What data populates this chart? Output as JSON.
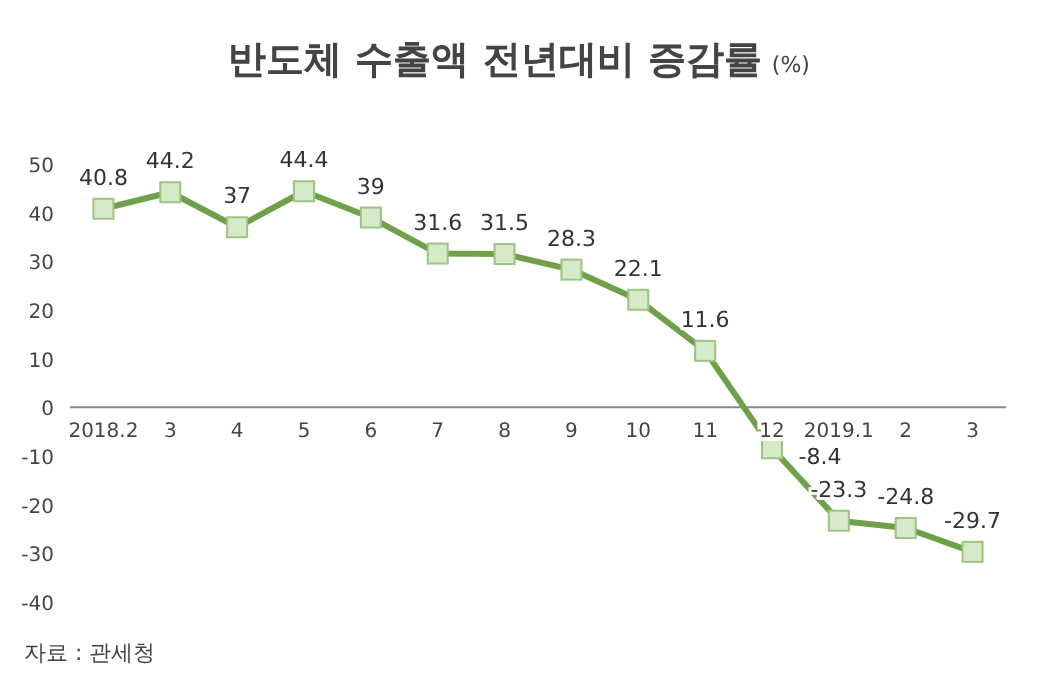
{
  "chart_data": {
    "type": "line",
    "title": "반도체 수출액 전년대비 증감률",
    "ylabel": "(%)",
    "categories": [
      "2018.2",
      "3",
      "4",
      "5",
      "6",
      "7",
      "8",
      "9",
      "10",
      "11",
      "12",
      "2019.1",
      "2",
      "3"
    ],
    "series": [
      {
        "color": "#70a04a",
        "values": [
          40.8,
          44.2,
          37,
          44.4,
          39,
          31.6,
          31.5,
          28.3,
          22.1,
          11.6,
          -8.4,
          -23.3,
          -24.8,
          -29.7
        ]
      }
    ],
    "ylim": [
      -40,
      50
    ],
    "yticks": [
      -40,
      -30,
      -20,
      -10,
      0,
      10,
      20,
      30,
      40,
      50
    ],
    "data_labels": true,
    "marker": "square",
    "line_style": "solid",
    "grid": false,
    "annotations": [
      "자료 : 관세청"
    ]
  }
}
